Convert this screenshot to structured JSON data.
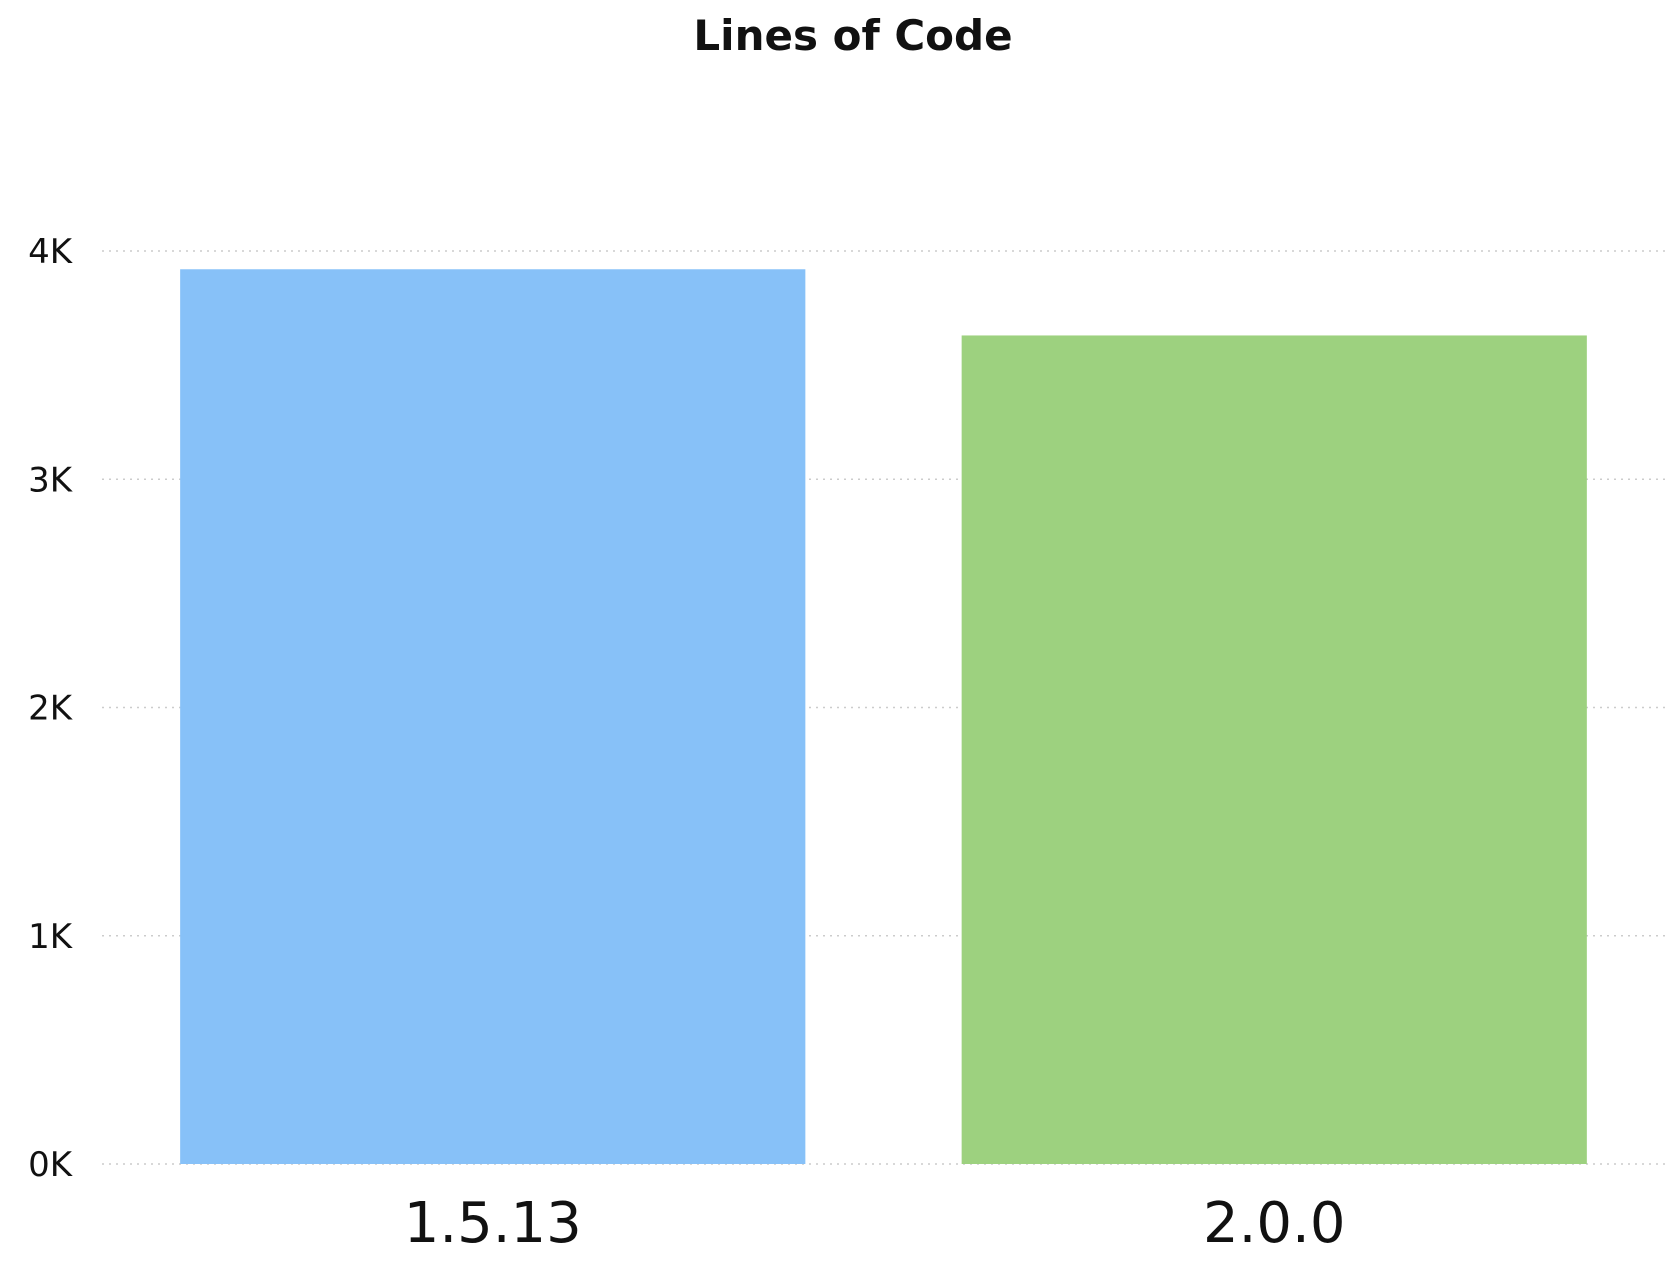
{
  "chart_data": {
    "type": "bar",
    "title": "Lines of Code",
    "xlabel": "",
    "ylabel": "",
    "categories": [
      "1.5.13",
      "2.0.0"
    ],
    "values": [
      3920,
      3630
    ],
    "colors": [
      "#87C1F8",
      "#9DD17F"
    ],
    "ylim": [
      0,
      4000
    ],
    "y_ticks": [
      {
        "value": 0,
        "label": "0K"
      },
      {
        "value": 1000,
        "label": "1K"
      },
      {
        "value": 2000,
        "label": "2K"
      },
      {
        "value": 3000,
        "label": "3K"
      },
      {
        "value": 4000,
        "label": "4K"
      }
    ],
    "grid": true,
    "legend": "none"
  }
}
